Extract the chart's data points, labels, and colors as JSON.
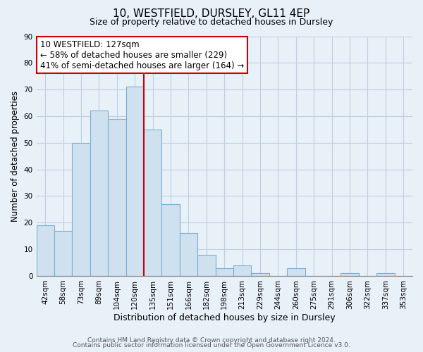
{
  "title": "10, WESTFIELD, DURSLEY, GL11 4EP",
  "subtitle": "Size of property relative to detached houses in Dursley",
  "xlabel": "Distribution of detached houses by size in Dursley",
  "ylabel": "Number of detached properties",
  "bar_color": "#cfe0ef",
  "bar_edge_color": "#7aafd4",
  "categories": [
    "42sqm",
    "58sqm",
    "73sqm",
    "89sqm",
    "104sqm",
    "120sqm",
    "135sqm",
    "151sqm",
    "166sqm",
    "182sqm",
    "198sqm",
    "213sqm",
    "229sqm",
    "244sqm",
    "260sqm",
    "275sqm",
    "291sqm",
    "306sqm",
    "322sqm",
    "337sqm",
    "353sqm"
  ],
  "values": [
    19,
    17,
    50,
    62,
    59,
    71,
    55,
    27,
    16,
    8,
    3,
    4,
    1,
    0,
    3,
    0,
    0,
    1,
    0,
    1,
    0
  ],
  "vline_pos": 5.5,
  "vline_color": "#cc0000",
  "annotation_title": "10 WESTFIELD: 127sqm",
  "annotation_line1": "← 58% of detached houses are smaller (229)",
  "annotation_line2": "41% of semi-detached houses are larger (164) →",
  "ylim": [
    0,
    90
  ],
  "yticks": [
    0,
    10,
    20,
    30,
    40,
    50,
    60,
    70,
    80,
    90
  ],
  "footer1": "Contains HM Land Registry data © Crown copyright and database right 2024.",
  "footer2": "Contains public sector information licensed under the Open Government Licence v3.0.",
  "background_color": "#e8f0f8",
  "plot_bg_color": "#e8f0f8",
  "grid_color": "#c0cfe0",
  "annotation_box_color": "#ffffff",
  "annotation_box_edge": "#cc0000",
  "title_fontsize": 11,
  "subtitle_fontsize": 9,
  "ylabel_fontsize": 8.5,
  "xlabel_fontsize": 9,
  "tick_fontsize": 7.5,
  "ann_fontsize": 8.5
}
